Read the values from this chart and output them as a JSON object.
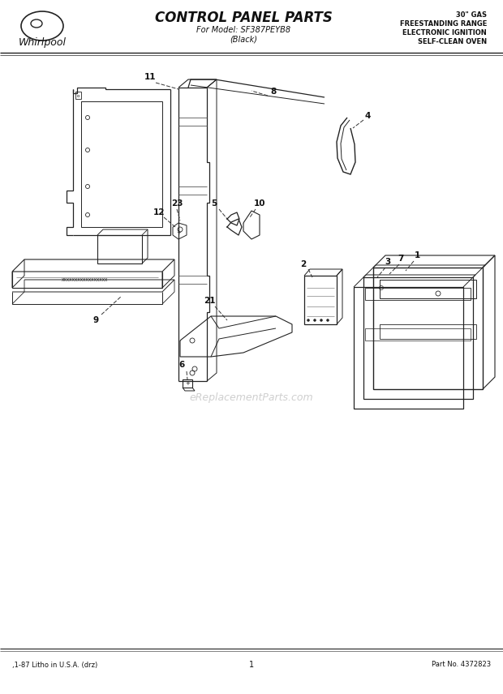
{
  "title": "CONTROL PANEL PARTS",
  "subtitle1": "For Model: SF387PEYB8",
  "subtitle2": "(Black)",
  "top_right_lines": [
    "30\" GAS",
    "FREESTANDING RANGE",
    "ELECTRONIC IGNITION",
    "SELF-CLEAN OVEN"
  ],
  "bottom_left": ",1-87 Litho in U.S.A. (drz)",
  "bottom_center": "1",
  "bottom_right": "Part No. 4372823",
  "watermark": "eReplacementParts.com",
  "bg_color": "#ffffff",
  "lc": "#222222",
  "tc": "#111111"
}
